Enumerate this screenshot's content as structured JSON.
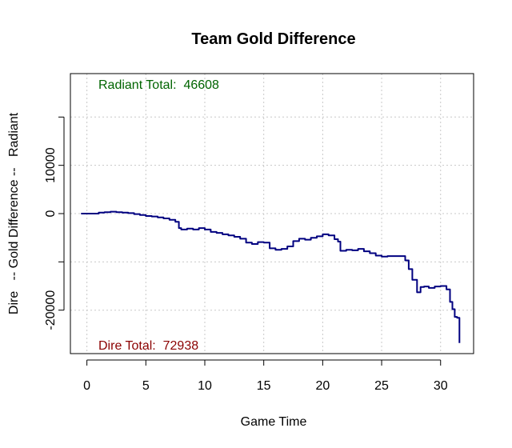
{
  "colors": {
    "line": "#000080",
    "radiant_text": "#006400",
    "dire_text": "#8b0000",
    "grid": "#c8c8c8",
    "frame": "#000000"
  },
  "chart_data": {
    "type": "line",
    "title": "Team Gold Difference",
    "xlabel": "Game Time",
    "ylabel": "Dire   -- Gold Difference --   Radiant",
    "xlim": [
      -1.4,
      32.8
    ],
    "ylim": [
      -29000,
      29000
    ],
    "x_ticks": [
      0,
      5,
      10,
      15,
      20,
      25,
      30
    ],
    "y_ticks": [
      -30000,
      -20000,
      -10000,
      0,
      10000,
      20000
    ],
    "y_tick_labels": [
      "-20000",
      "0",
      "10000"
    ],
    "y_tick_label_values": [
      -20000,
      0,
      10000
    ],
    "grid": true,
    "annotations": {
      "radiant_total": "Radiant Total:  46608",
      "dire_total": "Dire Total:  72938"
    },
    "series": [
      {
        "x": [
          -0.5,
          0.5,
          1.0,
          1.5,
          2.0,
          2.5,
          3.0,
          3.5,
          4.0,
          4.5,
          5.0,
          5.5,
          6.0,
          6.5,
          7.0,
          7.5,
          7.8,
          8.0,
          8.5,
          9.0,
          9.5,
          10.0,
          10.5,
          11.0,
          11.5,
          12.0,
          12.5,
          13.0,
          13.5,
          14.0,
          14.5,
          15.0,
          15.5,
          16.0,
          16.5,
          17.0,
          17.5,
          18.0,
          18.5,
          19.0,
          19.5,
          20.0,
          20.5,
          21.0,
          21.3,
          21.5,
          22.0,
          22.5,
          23.0,
          23.5,
          24.0,
          24.5,
          25.0,
          25.5,
          26.0,
          26.5,
          27.0,
          27.3,
          27.6,
          28.0,
          28.3,
          28.6,
          29.0,
          29.5,
          30.0,
          30.5,
          30.8,
          31.0,
          31.2,
          31.4,
          31.6
        ],
        "y": [
          0,
          0,
          200,
          300,
          400,
          300,
          200,
          100,
          -100,
          -300,
          -500,
          -600,
          -800,
          -1000,
          -1300,
          -1700,
          -3000,
          -3300,
          -3100,
          -3300,
          -3000,
          -3300,
          -3800,
          -4000,
          -4300,
          -4500,
          -4800,
          -5200,
          -6000,
          -6300,
          -5900,
          -6000,
          -7200,
          -7500,
          -7300,
          -6800,
          -5700,
          -5200,
          -5400,
          -5000,
          -4700,
          -4300,
          -4500,
          -5300,
          -5800,
          -7700,
          -7500,
          -7600,
          -7300,
          -7800,
          -8200,
          -8700,
          -8900,
          -8800,
          -8800,
          -8800,
          -9700,
          -11500,
          -13700,
          -16300,
          -15200,
          -15100,
          -15400,
          -15100,
          -15000,
          -15700,
          -18300,
          -19800,
          -21400,
          -21600,
          -26800
        ]
      }
    ]
  }
}
